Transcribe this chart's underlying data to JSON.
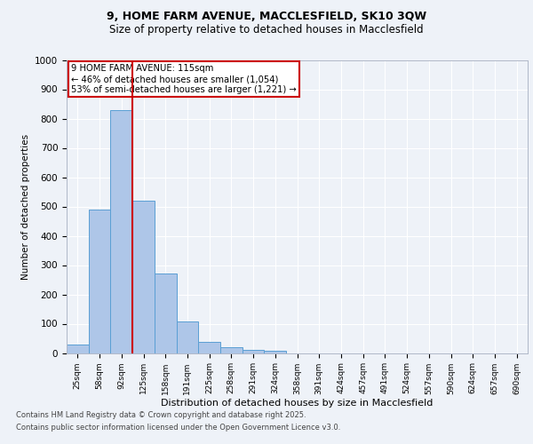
{
  "title_line1": "9, HOME FARM AVENUE, MACCLESFIELD, SK10 3QW",
  "title_line2": "Size of property relative to detached houses in Macclesfield",
  "xlabel": "Distribution of detached houses by size in Macclesfield",
  "ylabel": "Number of detached properties",
  "categories": [
    "25sqm",
    "58sqm",
    "92sqm",
    "125sqm",
    "158sqm",
    "191sqm",
    "225sqm",
    "258sqm",
    "291sqm",
    "324sqm",
    "358sqm",
    "391sqm",
    "424sqm",
    "457sqm",
    "491sqm",
    "524sqm",
    "557sqm",
    "590sqm",
    "624sqm",
    "657sqm",
    "690sqm"
  ],
  "values": [
    30,
    490,
    830,
    520,
    270,
    108,
    37,
    20,
    10,
    8,
    0,
    0,
    0,
    0,
    0,
    0,
    0,
    0,
    0,
    0,
    0
  ],
  "bar_color": "#aec6e8",
  "bar_edge_color": "#5a9fd4",
  "vline_x": 2.5,
  "vline_color": "#cc0000",
  "annotation_line1": "9 HOME FARM AVENUE: 115sqm",
  "annotation_line2": "← 46% of detached houses are smaller (1,054)",
  "annotation_line3": "53% of semi-detached houses are larger (1,221) →",
  "annotation_box_color": "#cc0000",
  "ylim": [
    0,
    1000
  ],
  "yticks": [
    0,
    100,
    200,
    300,
    400,
    500,
    600,
    700,
    800,
    900,
    1000
  ],
  "footer_line1": "Contains HM Land Registry data © Crown copyright and database right 2025.",
  "footer_line2": "Contains public sector information licensed under the Open Government Licence v3.0.",
  "background_color": "#eef2f8",
  "plot_background": "#eef2f8"
}
